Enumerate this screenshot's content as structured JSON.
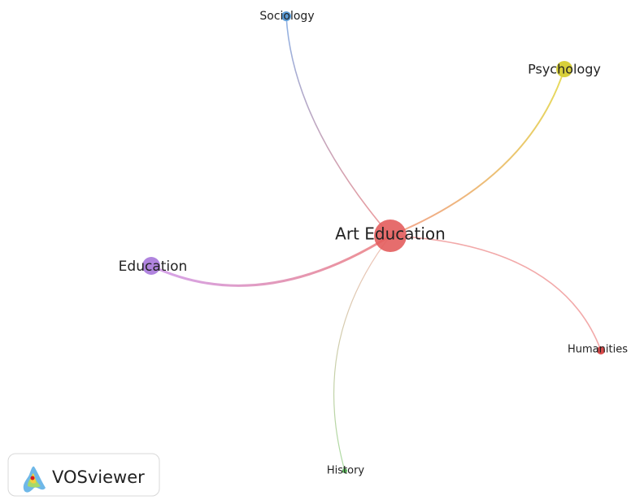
{
  "nodes": [
    {
      "label": "Art Education"
    },
    {
      "label": "Sociology"
    },
    {
      "label": "Psychology"
    },
    {
      "label": "Education"
    },
    {
      "label": "Humanities"
    },
    {
      "label": "History"
    }
  ],
  "logo": {
    "text": "VOSviewer"
  }
}
